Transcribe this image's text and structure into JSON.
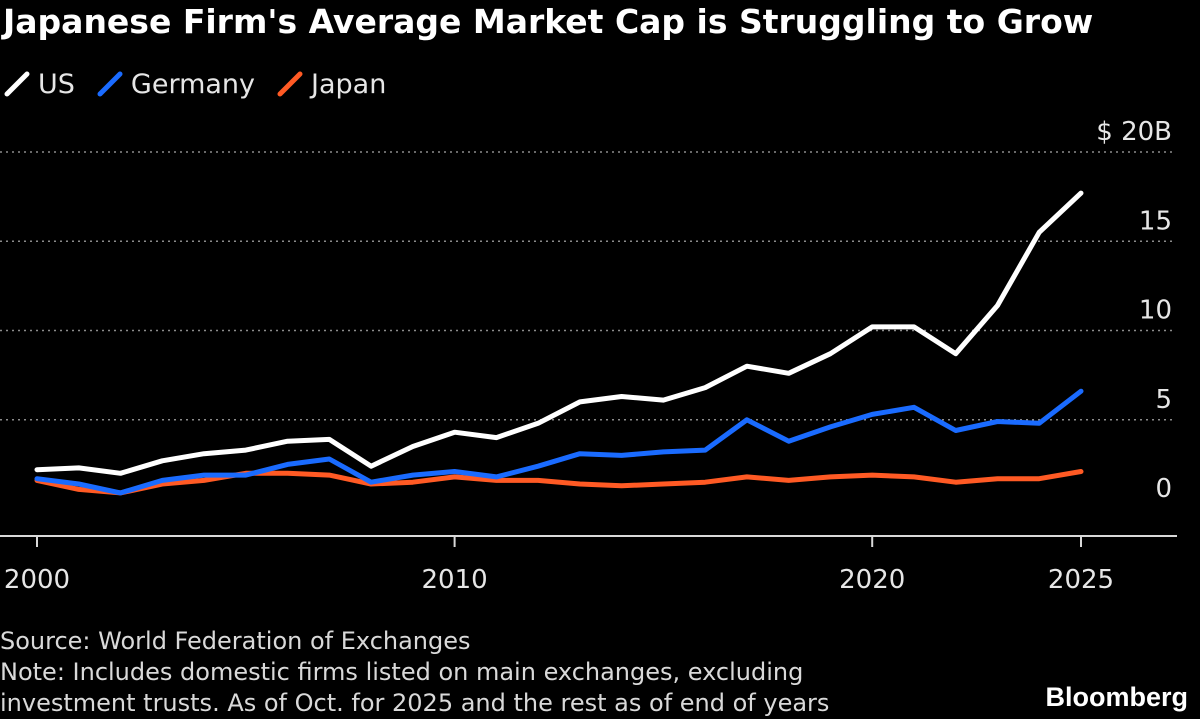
{
  "chart_data": {
    "type": "line",
    "title": "Japanese Firm's Average Market Cap is Struggling to Grow",
    "y_unit_label": "$ 20B",
    "x": [
      2000,
      2001,
      2002,
      2003,
      2004,
      2005,
      2006,
      2007,
      2008,
      2009,
      2010,
      2011,
      2012,
      2013,
      2014,
      2015,
      2016,
      2017,
      2018,
      2019,
      2020,
      2021,
      2022,
      2023,
      2024,
      2025
    ],
    "xticks": [
      2000,
      2010,
      2020,
      2025
    ],
    "xtick_labels": [
      "2000",
      "2010",
      "2020",
      "2025"
    ],
    "yticks": [
      0,
      5,
      10,
      15,
      20
    ],
    "ytick_labels": [
      "0",
      "5",
      "10",
      "15",
      "$ 20B"
    ],
    "xlim": [
      2000,
      2027
    ],
    "ylim": [
      -1.5,
      20
    ],
    "grid": "horizontal dotted",
    "legend_position": "top-left",
    "series": [
      {
        "name": "US",
        "color": "#ffffff",
        "values": [
          2.2,
          2.3,
          2.0,
          2.7,
          3.1,
          3.3,
          3.8,
          3.9,
          2.4,
          3.5,
          4.3,
          4.0,
          4.8,
          6.0,
          6.3,
          6.1,
          6.8,
          8.0,
          7.6,
          8.7,
          10.2,
          10.2,
          8.7,
          11.4,
          15.5,
          17.7
        ]
      },
      {
        "name": "Germany",
        "color": "#1a6bff",
        "values": [
          1.7,
          1.4,
          0.9,
          1.6,
          1.9,
          1.9,
          2.5,
          2.8,
          1.5,
          1.9,
          2.1,
          1.8,
          2.4,
          3.1,
          3.0,
          3.2,
          3.3,
          5.0,
          3.8,
          4.6,
          5.3,
          5.7,
          4.4,
          4.9,
          4.8,
          6.6
        ]
      },
      {
        "name": "Japan",
        "color": "#ff5a24",
        "values": [
          1.6,
          1.1,
          0.9,
          1.4,
          1.6,
          2.0,
          2.0,
          1.9,
          1.4,
          1.5,
          1.8,
          1.6,
          1.6,
          1.4,
          1.3,
          1.4,
          1.5,
          1.8,
          1.6,
          1.8,
          1.9,
          1.8,
          1.5,
          1.7,
          1.7,
          2.1
        ]
      }
    ]
  },
  "footer": {
    "source": "Source: World Federation of Exchanges",
    "note_line1": "Note: Includes domestic firms listed on main exchanges, excluding",
    "note_line2": "investment trusts. As of Oct. for 2025 and the rest as of end of years",
    "brand": "Bloomberg"
  }
}
